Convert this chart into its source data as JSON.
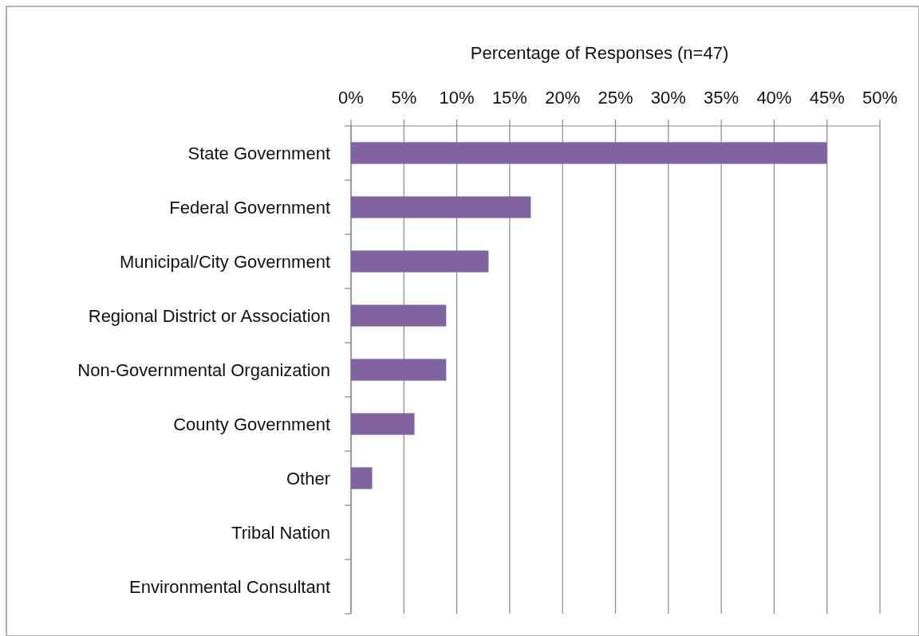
{
  "chart_data": {
    "type": "bar",
    "orientation": "horizontal",
    "xlabel": "Percentage of Responses (n=47)",
    "categories": [
      "State Government",
      "Federal Government",
      "Municipal/City Government",
      "Regional District or Association",
      "Non-Governmental Organization",
      "County Government",
      "Other",
      "Tribal Nation",
      "Environmental Consultant"
    ],
    "values": [
      45,
      17,
      13,
      9,
      9,
      6,
      2,
      0,
      0
    ],
    "color": "#8064a2",
    "xlim": [
      0,
      50
    ],
    "xticks": [
      {
        "value": 0,
        "label": "0%"
      },
      {
        "value": 5,
        "label": "5%"
      },
      {
        "value": 10,
        "label": "10%"
      },
      {
        "value": 15,
        "label": "15%"
      },
      {
        "value": 20,
        "label": "20%"
      },
      {
        "value": 25,
        "label": "25%"
      },
      {
        "value": 30,
        "label": "30%"
      },
      {
        "value": 35,
        "label": "35%"
      },
      {
        "value": 40,
        "label": "40%"
      },
      {
        "value": 45,
        "label": "45%"
      },
      {
        "value": 50,
        "label": "50%"
      }
    ],
    "grid": "x"
  }
}
